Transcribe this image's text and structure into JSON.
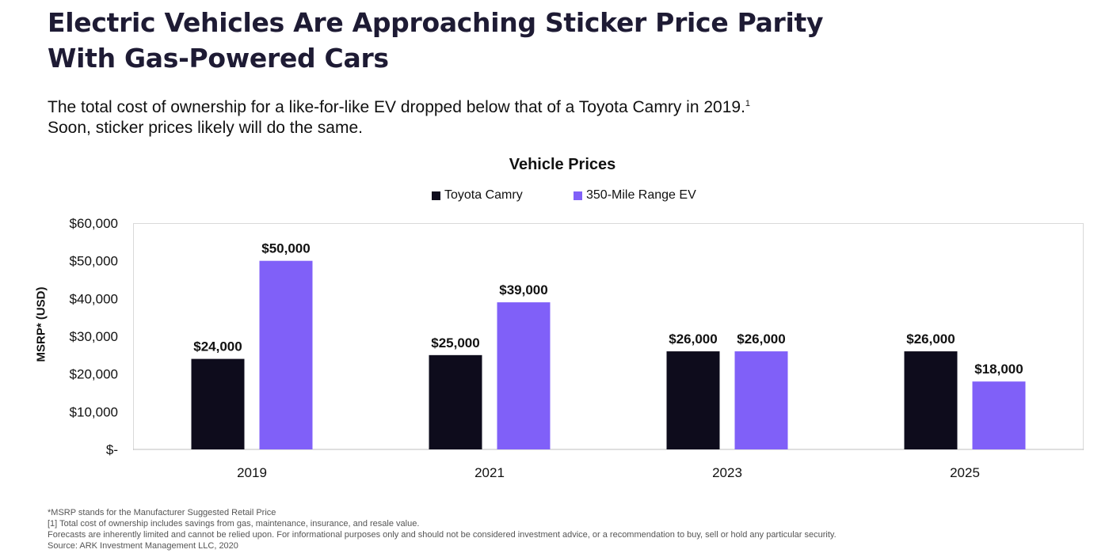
{
  "header": {
    "title_line1": "Electric Vehicles Are Approaching Sticker Price Parity",
    "title_line2": "With Gas-Powered Cars",
    "subtitle_line1": "The total cost of ownership for a like-for-like EV dropped below that of a Toyota Camry in 2019.",
    "subtitle_footnote_mark": "1",
    "subtitle_line2": "Soon, sticker prices likely will do the same."
  },
  "chart_data": {
    "type": "bar",
    "title": "Vehicle Prices",
    "xlabel": "",
    "ylabel": "MSRP* (USD)",
    "categories": [
      "2019",
      "2021",
      "2023",
      "2025"
    ],
    "ylim": [
      0,
      60000
    ],
    "y_tick_labels": [
      "$-",
      "$10,000",
      "$20,000",
      "$30,000",
      "$40,000",
      "$50,000",
      "$60,000"
    ],
    "grid": false,
    "legend_position": "top-center",
    "series": [
      {
        "name": "Toyota Camry",
        "color": "#0e0c1c",
        "values": [
          24000,
          25000,
          26000,
          26000
        ],
        "labels": [
          "$24,000",
          "$25,000",
          "$26,000",
          "$26,000"
        ]
      },
      {
        "name": "350-Mile Range EV",
        "color": "#8060f8",
        "values": [
          50000,
          39000,
          26000,
          18000
        ],
        "labels": [
          "$50,000",
          "$39,000",
          "$26,000",
          "$18,000"
        ]
      }
    ]
  },
  "footnotes": [
    "*MSRP stands for the Manufacturer Suggested Retail Price",
    "[1] Total cost of ownership includes savings from gas, maintenance, insurance, and resale value.",
    "Forecasts are inherently limited and cannot be relied upon.  For informational purposes only and should not be considered investment advice, or a recommendation to buy, sell or hold any particular security.",
    "Source: ARK Investment Management LLC, 2020"
  ]
}
